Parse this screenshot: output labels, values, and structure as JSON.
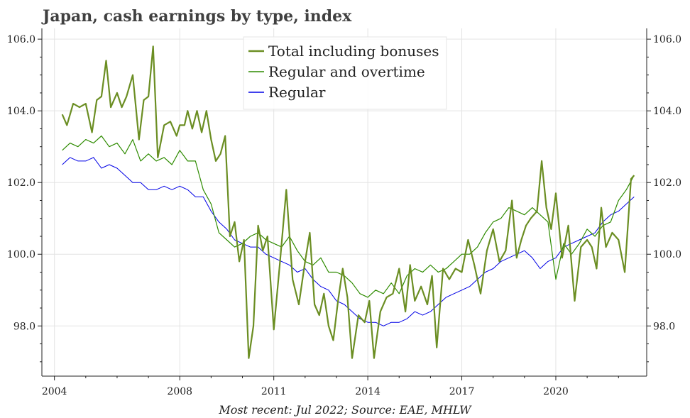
{
  "chart_data": {
    "type": "line",
    "title": "Japan, cash earnings by type, index",
    "caption": "Most recent: Jul 2022; Source: EAE, MHLW",
    "xlabel": "",
    "ylabel": "",
    "xlim": [
      2003.6,
      2022.9
    ],
    "ylim": [
      96.6,
      106.3
    ],
    "x_ticks": [
      2004,
      2008,
      2011,
      2014,
      2017,
      2020
    ],
    "y_ticks": [
      98.0,
      100.0,
      102.0,
      104.0,
      106.0
    ],
    "y_tick_labels": [
      "98.0",
      "100.0",
      "102.0",
      "104.0",
      "106.0"
    ],
    "legend_position": "top-center",
    "series": [
      {
        "name": "Total including bonuses",
        "color": "#6b8e23",
        "width": 2.2,
        "x": [
          2004.25,
          2004.4,
          2004.6,
          2004.8,
          2005.0,
          2005.2,
          2005.35,
          2005.5,
          2005.65,
          2005.8,
          2006.0,
          2006.15,
          2006.3,
          2006.5,
          2006.7,
          2006.85,
          2007.0,
          2007.15,
          2007.3,
          2007.5,
          2007.7,
          2007.9,
          2008.0,
          2008.15,
          2008.25,
          2008.4,
          2008.55,
          2008.7,
          2008.85,
          2009.0,
          2009.15,
          2009.3,
          2009.45,
          2009.6,
          2009.75,
          2009.9,
          2010.05,
          2010.2,
          2010.35,
          2010.5,
          2010.65,
          2010.8,
          2011.0,
          2011.2,
          2011.4,
          2011.6,
          2011.8,
          2012.0,
          2012.15,
          2012.3,
          2012.45,
          2012.6,
          2012.75,
          2012.9,
          2013.05,
          2013.2,
          2013.35,
          2013.5,
          2013.7,
          2013.9,
          2014.05,
          2014.2,
          2014.4,
          2014.6,
          2014.8,
          2015.0,
          2015.2,
          2015.35,
          2015.5,
          2015.7,
          2015.9,
          2016.05,
          2016.2,
          2016.4,
          2016.6,
          2016.8,
          2017.0,
          2017.2,
          2017.4,
          2017.6,
          2017.8,
          2018.0,
          2018.2,
          2018.4,
          2018.6,
          2018.75,
          2018.9,
          2019.05,
          2019.2,
          2019.4,
          2019.55,
          2019.7,
          2019.85,
          2020.0,
          2020.2,
          2020.4,
          2020.6,
          2020.8,
          2021.0,
          2021.15,
          2021.3,
          2021.45,
          2021.6,
          2021.8,
          2022.0,
          2022.2,
          2022.4,
          2022.5
        ],
        "values": [
          103.9,
          103.6,
          104.2,
          104.1,
          104.2,
          103.4,
          104.3,
          104.4,
          105.4,
          104.1,
          104.5,
          104.1,
          104.4,
          105.0,
          103.2,
          104.3,
          104.4,
          105.8,
          102.7,
          103.6,
          103.7,
          103.3,
          103.6,
          103.6,
          104.0,
          103.5,
          104.0,
          103.4,
          104.0,
          103.2,
          102.6,
          102.8,
          103.3,
          100.5,
          100.9,
          99.8,
          100.4,
          97.1,
          98.0,
          100.8,
          100.1,
          100.5,
          97.9,
          99.8,
          101.8,
          99.3,
          98.6,
          99.8,
          100.6,
          98.6,
          98.3,
          98.9,
          98.0,
          97.6,
          98.7,
          99.6,
          98.8,
          97.1,
          98.3,
          98.1,
          98.7,
          97.1,
          98.4,
          98.8,
          98.9,
          99.6,
          98.4,
          99.7,
          98.7,
          99.1,
          98.6,
          99.4,
          97.4,
          99.6,
          99.3,
          99.6,
          99.5,
          100.4,
          99.7,
          98.9,
          100.1,
          100.7,
          99.8,
          100.1,
          101.5,
          99.9,
          100.4,
          100.8,
          101.0,
          101.2,
          102.6,
          101.3,
          100.7,
          101.7,
          99.9,
          100.8,
          98.7,
          100.2,
          100.4,
          100.2,
          99.6,
          101.3,
          100.2,
          100.6,
          100.4,
          99.5,
          102.1,
          102.2
        ]
      },
      {
        "name": "Regular and overtime",
        "color": "#2e8b00",
        "width": 1.2,
        "x": [
          2004.25,
          2004.5,
          2004.75,
          2005.0,
          2005.25,
          2005.5,
          2005.75,
          2006.0,
          2006.25,
          2006.5,
          2006.75,
          2007.0,
          2007.25,
          2007.5,
          2007.75,
          2008.0,
          2008.25,
          2008.5,
          2008.75,
          2009.0,
          2009.25,
          2009.5,
          2009.75,
          2010.0,
          2010.25,
          2010.5,
          2010.75,
          2011.0,
          2011.25,
          2011.5,
          2011.75,
          2012.0,
          2012.25,
          2012.5,
          2012.75,
          2013.0,
          2013.25,
          2013.5,
          2013.75,
          2014.0,
          2014.25,
          2014.5,
          2014.75,
          2015.0,
          2015.25,
          2015.5,
          2015.75,
          2016.0,
          2016.25,
          2016.5,
          2016.75,
          2017.0,
          2017.25,
          2017.5,
          2017.75,
          2018.0,
          2018.25,
          2018.5,
          2018.75,
          2019.0,
          2019.25,
          2019.5,
          2019.75,
          2020.0,
          2020.25,
          2020.5,
          2020.75,
          2021.0,
          2021.25,
          2021.5,
          2021.75,
          2022.0,
          2022.25,
          2022.5
        ],
        "values": [
          102.9,
          103.1,
          103.0,
          103.2,
          103.1,
          103.3,
          103.0,
          103.1,
          102.8,
          103.2,
          102.6,
          102.8,
          102.6,
          102.7,
          102.5,
          102.9,
          102.6,
          102.6,
          101.8,
          101.4,
          100.6,
          100.4,
          100.2,
          100.3,
          100.5,
          100.6,
          100.4,
          100.3,
          100.2,
          100.5,
          100.1,
          99.8,
          99.7,
          99.9,
          99.5,
          99.5,
          99.4,
          99.2,
          98.9,
          98.8,
          99.0,
          98.9,
          99.2,
          98.9,
          99.4,
          99.6,
          99.5,
          99.7,
          99.5,
          99.6,
          99.8,
          100.0,
          100.0,
          100.2,
          100.6,
          100.9,
          101.0,
          101.3,
          101.2,
          101.1,
          101.3,
          101.1,
          100.9,
          99.3,
          100.3,
          100.0,
          100.3,
          100.7,
          100.5,
          100.8,
          100.9,
          101.5,
          101.8,
          102.2
        ]
      },
      {
        "name": "Regular",
        "color": "#0000e6",
        "width": 1.0,
        "x": [
          2004.25,
          2004.5,
          2004.75,
          2005.0,
          2005.25,
          2005.5,
          2005.75,
          2006.0,
          2006.25,
          2006.5,
          2006.75,
          2007.0,
          2007.25,
          2007.5,
          2007.75,
          2008.0,
          2008.25,
          2008.5,
          2008.75,
          2009.0,
          2009.25,
          2009.5,
          2009.75,
          2010.0,
          2010.25,
          2010.5,
          2010.75,
          2011.0,
          2011.25,
          2011.5,
          2011.75,
          2012.0,
          2012.25,
          2012.5,
          2012.75,
          2013.0,
          2013.25,
          2013.5,
          2013.75,
          2014.0,
          2014.25,
          2014.5,
          2014.75,
          2015.0,
          2015.25,
          2015.5,
          2015.75,
          2016.0,
          2016.25,
          2016.5,
          2016.75,
          2017.0,
          2017.25,
          2017.5,
          2017.75,
          2018.0,
          2018.25,
          2018.5,
          2018.75,
          2019.0,
          2019.25,
          2019.5,
          2019.75,
          2020.0,
          2020.25,
          2020.5,
          2020.75,
          2021.0,
          2021.25,
          2021.5,
          2021.75,
          2022.0,
          2022.25,
          2022.5
        ],
        "values": [
          102.5,
          102.7,
          102.6,
          102.6,
          102.7,
          102.4,
          102.5,
          102.4,
          102.2,
          102.0,
          102.0,
          101.8,
          101.8,
          101.9,
          101.8,
          101.9,
          101.8,
          101.6,
          101.6,
          101.2,
          100.9,
          100.7,
          100.4,
          100.3,
          100.2,
          100.2,
          100.0,
          99.9,
          99.8,
          99.7,
          99.5,
          99.6,
          99.3,
          99.1,
          99.0,
          98.7,
          98.6,
          98.4,
          98.2,
          98.1,
          98.1,
          98.0,
          98.1,
          98.1,
          98.2,
          98.4,
          98.3,
          98.4,
          98.6,
          98.8,
          98.9,
          99.0,
          99.1,
          99.3,
          99.5,
          99.6,
          99.8,
          99.9,
          100.0,
          100.1,
          99.9,
          99.6,
          99.8,
          99.9,
          100.2,
          100.3,
          100.4,
          100.5,
          100.6,
          100.9,
          101.1,
          101.2,
          101.4,
          101.6
        ]
      }
    ]
  }
}
